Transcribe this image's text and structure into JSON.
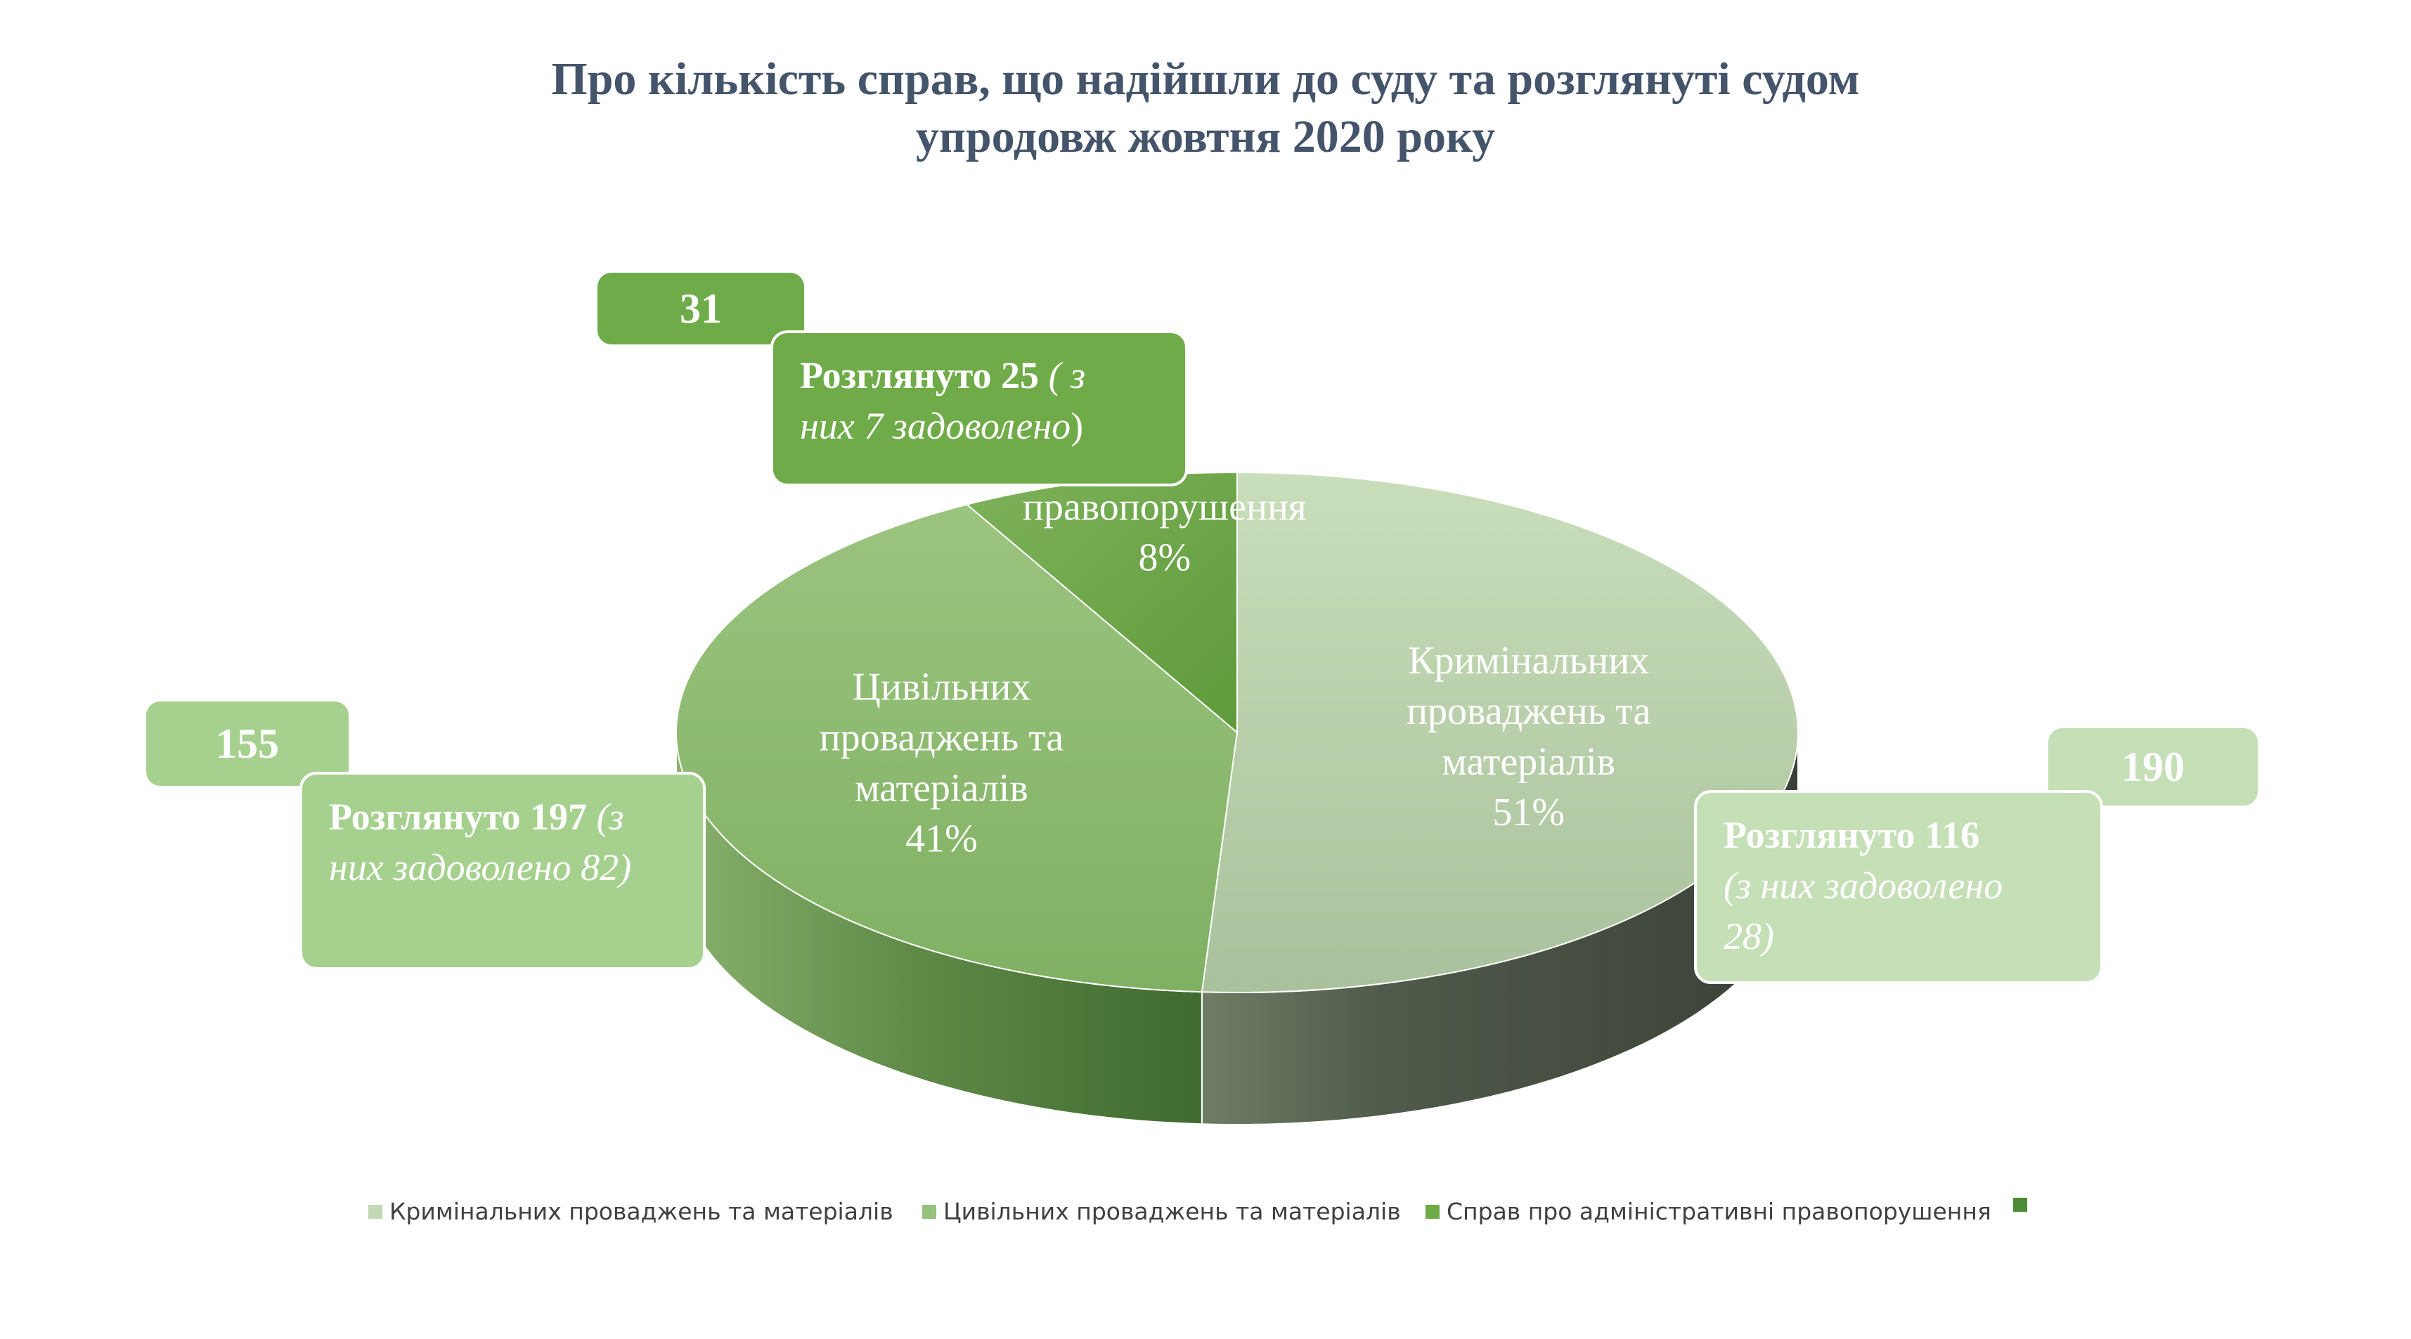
{
  "title_line1": "Про кількість справ, що надійшли до суду та розглянуті судом",
  "title_line2": "упродовж жовтня 2020 року",
  "chart_data": {
    "type": "pie",
    "style": "3d",
    "categories": [
      "Кримінальних проваджень та матеріалів",
      "Цивільних проваджень та матеріалів",
      "Справ про адміністративні правопорушення",
      ""
    ],
    "percent_labels": [
      "51%",
      "41%",
      "8%",
      ""
    ],
    "values": [
      51,
      41,
      8,
      0
    ],
    "colors": [
      "#c3d9b6",
      "#96c27d",
      "#6fab48",
      "#4c8a35"
    ],
    "legend_position": "bottom"
  },
  "callouts": {
    "criminal": {
      "count": "190",
      "reviewed": "Розглянуто 116",
      "detail_line1": "(з них задоволено",
      "detail_line2": "28)"
    },
    "civil": {
      "count": "155",
      "reviewed": "Розглянуто 197",
      "reviewed_suffix": " (з",
      "detail_line2": "них задоволено 82)"
    },
    "admin": {
      "count": "31",
      "reviewed": "Розглянуто 25",
      "reviewed_suffix": " ( з",
      "detail_line2": "них 7 задоволено",
      "detail_close": ")"
    }
  }
}
